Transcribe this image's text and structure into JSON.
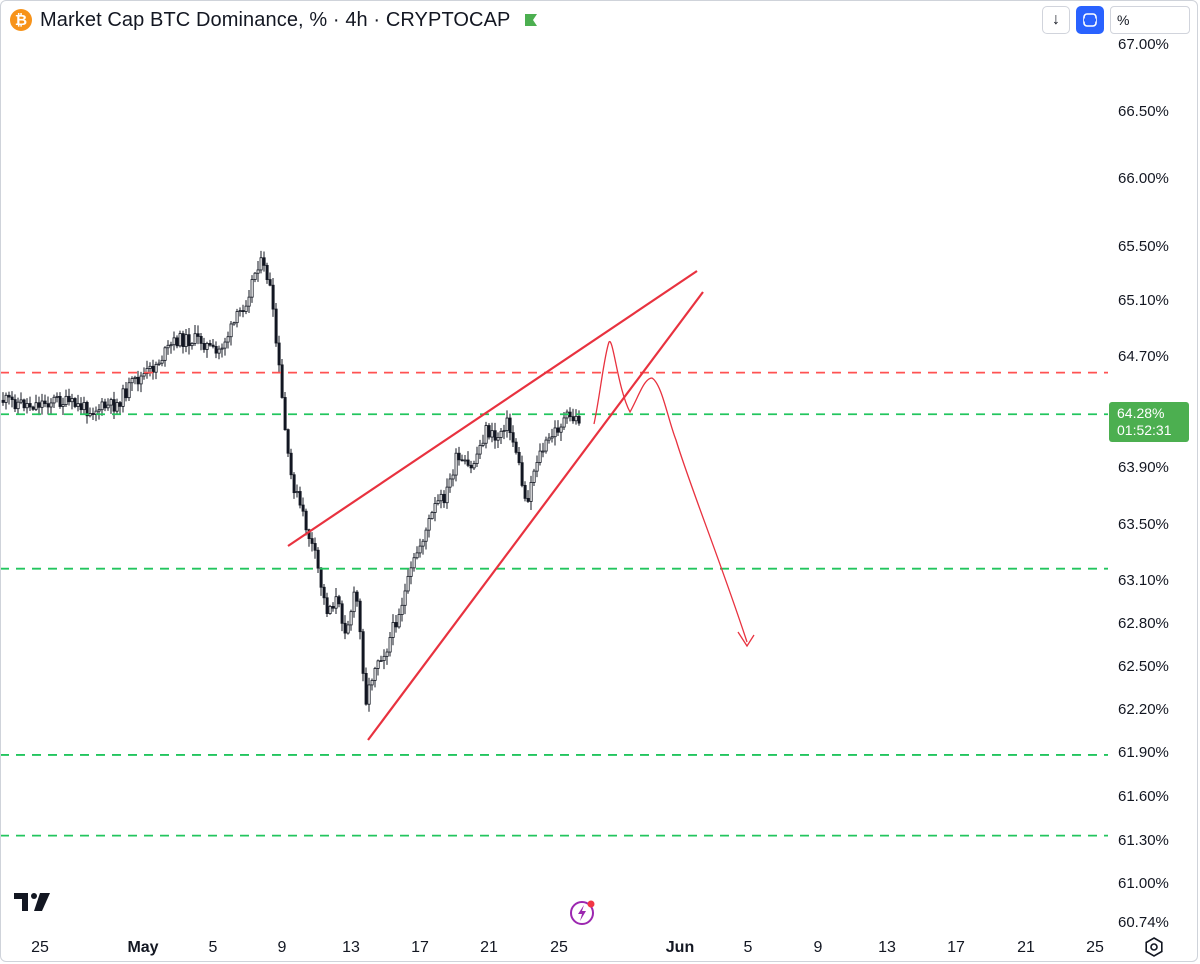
{
  "header": {
    "title": "Market Cap BTC Dominance, % · 4h · CRYPTOCAP",
    "symbol_icon": "bitcoin-icon"
  },
  "toolbar": {
    "down_label": "↓",
    "scale_input_value": "%"
  },
  "price_badge": {
    "value": "64.28%",
    "countdown": "01:52:31",
    "color": "#4caf50"
  },
  "colors": {
    "up": "#131722",
    "down": "#131722",
    "resistance": "#ff5252",
    "support": "#22c55e",
    "pattern": "#e8323f"
  },
  "chart_data": {
    "type": "candlestick",
    "timeframe": "4h",
    "y_tick_labels": [
      "67.00%",
      "66.50%",
      "66.00%",
      "65.50%",
      "65.10%",
      "64.70%",
      "63.90%",
      "63.50%",
      "63.10%",
      "62.80%",
      "62.50%",
      "62.20%",
      "61.90%",
      "61.60%",
      "61.30%",
      "61.00%",
      "60.74%"
    ],
    "x_tick_labels": [
      "25",
      "May",
      "5",
      "9",
      "13",
      "17",
      "21",
      "25",
      "Jun",
      "5",
      "9",
      "13",
      "17",
      "21",
      "25"
    ],
    "bold_x_labels": [
      "May",
      "Jun"
    ],
    "current_price": 64.28,
    "horizontal_levels": [
      {
        "value": 64.58,
        "style": "dashed",
        "color": "#ff5252"
      },
      {
        "value": 64.28,
        "style": "dashed",
        "color": "#22c55e"
      },
      {
        "value": 63.18,
        "style": "dashed",
        "color": "#22c55e"
      },
      {
        "value": 61.88,
        "style": "dashed",
        "color": "#22c55e"
      },
      {
        "value": 61.33,
        "style": "dashed",
        "color": "#22c55e"
      }
    ],
    "rising_wedge": {
      "upper": {
        "from": [
          "May 9",
          63.5
        ],
        "to": [
          "Jun 1",
          65.35
        ]
      },
      "lower": {
        "from": [
          "May 13",
          62.0
        ],
        "to": [
          "Jun 1",
          65.2
        ]
      }
    },
    "projection_path": "up to ~64.90, retest ~64.40, then down to ~62.90"
  }
}
